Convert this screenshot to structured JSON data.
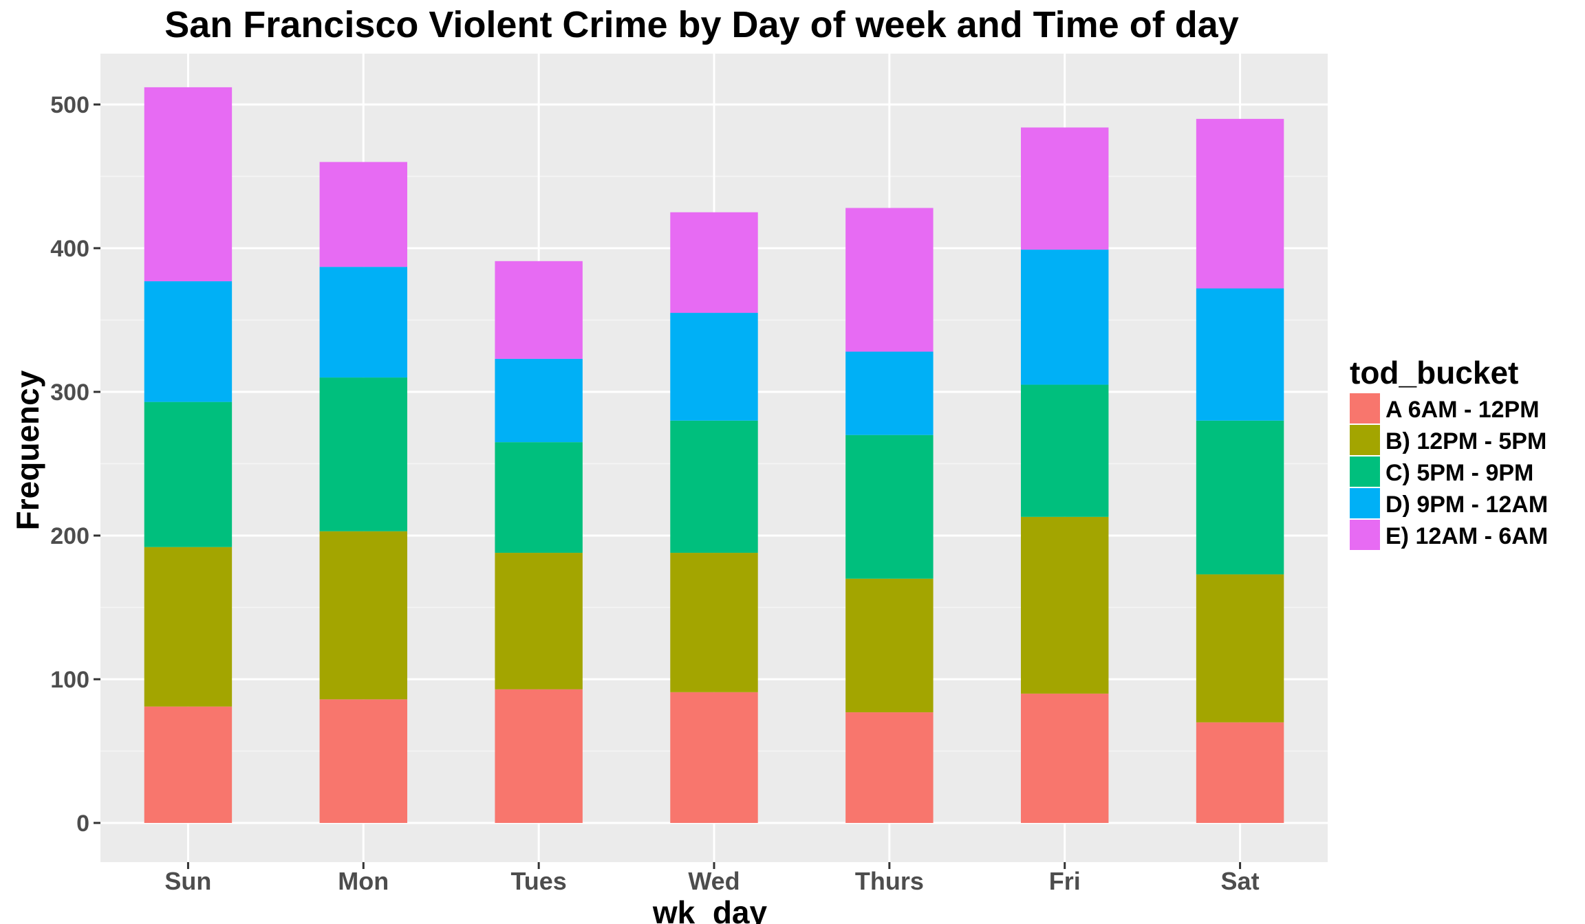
{
  "chart_data": {
    "type": "bar",
    "stacked": true,
    "title": "San Francisco Violent Crime by Day of week and Time of day",
    "xlabel": "wk_day",
    "ylabel": "Frequency",
    "ylim": [
      0,
      530
    ],
    "yticks": [
      0,
      100,
      200,
      300,
      400,
      500
    ],
    "grid": true,
    "legend_position": "right",
    "legend_title": "tod_bucket",
    "categories": [
      "Sun",
      "Mon",
      "Tues",
      "Wed",
      "Thurs",
      "Fri",
      "Sat"
    ],
    "series": [
      {
        "name": "A 6AM - 12PM",
        "color": "#F8766D",
        "values": [
          81,
          86,
          93,
          91,
          77,
          90,
          70
        ]
      },
      {
        "name": "B) 12PM - 5PM",
        "color": "#A3A500",
        "values": [
          111,
          117,
          95,
          97,
          93,
          123,
          103
        ]
      },
      {
        "name": "C) 5PM - 9PM",
        "color": "#00BF7D",
        "values": [
          101,
          107,
          77,
          92,
          100,
          92,
          107
        ]
      },
      {
        "name": "D) 9PM - 12AM",
        "color": "#00B0F6",
        "values": [
          84,
          77,
          58,
          75,
          58,
          94,
          92
        ]
      },
      {
        "name": "E) 12AM - 6AM",
        "color": "#E76BF3",
        "values": [
          135,
          73,
          68,
          70,
          100,
          85,
          118
        ]
      }
    ]
  }
}
